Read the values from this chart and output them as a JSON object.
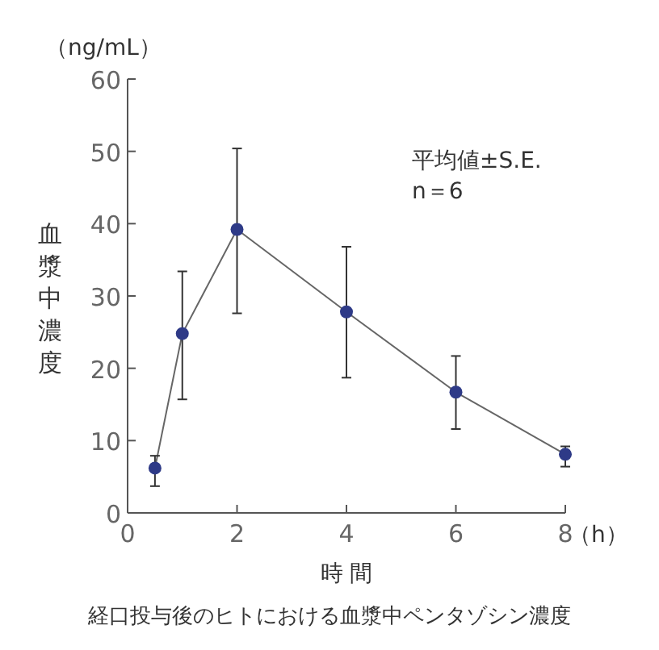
{
  "chart_data": {
    "type": "line",
    "xlabel": "時 間",
    "ylabel": "血漿中濃度",
    "x": [
      0.5,
      1,
      2,
      4,
      6,
      8
    ],
    "series": [
      {
        "color": "#2e3a87",
        "values": [
          6.2,
          24.8,
          39.2,
          27.8,
          16.7,
          8.1
        ],
        "errors": [
          [
            3.7,
            7.9
          ],
          [
            15.7,
            33.4
          ],
          [
            27.6,
            50.4
          ],
          [
            18.7,
            36.8
          ],
          [
            11.6,
            21.7
          ],
          [
            6.4,
            9.2
          ]
        ]
      }
    ],
    "xlim": [
      0,
      8
    ],
    "xticks": [
      0,
      2,
      4,
      6,
      8
    ],
    "ylim": [
      0,
      60
    ],
    "yticks": [
      0,
      10,
      20,
      30,
      40,
      50,
      60
    ],
    "marker": "circle",
    "line_style": "solid",
    "grid": false,
    "annotations": [
      "（ng/mL）",
      "（h）",
      "平均値±S.E.",
      "n＝6",
      "経口投与後のヒトにおける血漿中ペンタゾシン濃度"
    ]
  }
}
